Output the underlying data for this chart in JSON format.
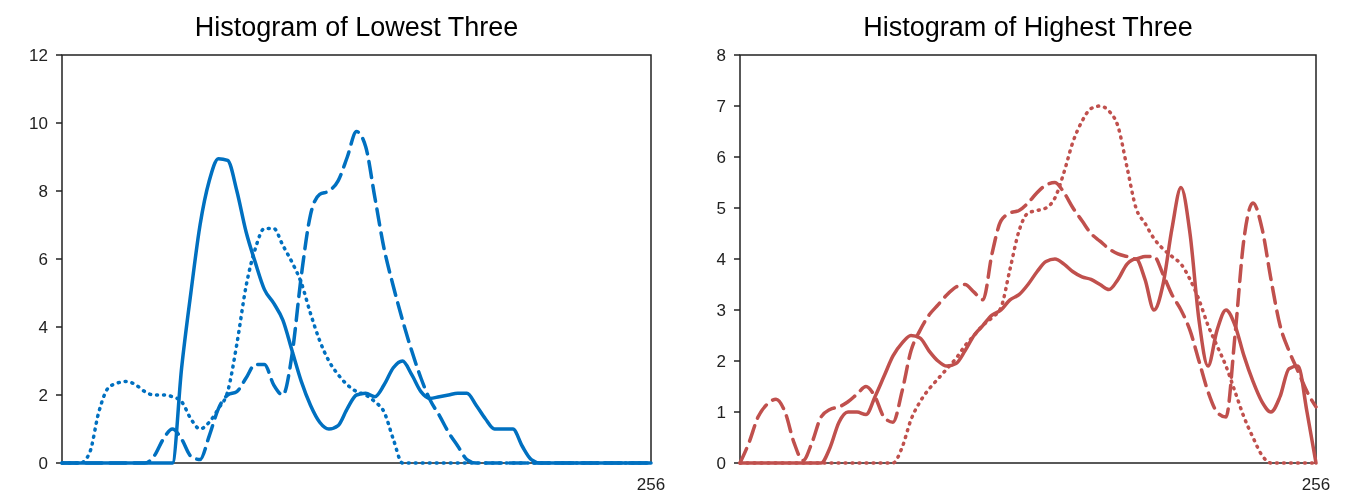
{
  "chart_data": [
    {
      "type": "line",
      "title": "Histogram of Lowest Three",
      "categories": [
        null,
        null,
        null,
        null,
        null,
        null,
        null,
        null,
        null,
        null,
        null,
        null,
        null,
        null,
        null,
        null,
        null,
        null,
        null,
        null,
        null,
        null,
        null,
        null,
        null,
        null,
        null,
        null,
        null,
        null,
        null,
        null,
        null,
        null,
        null,
        null,
        null,
        null,
        null,
        null,
        null,
        null,
        null,
        null,
        null,
        null,
        null,
        null,
        null,
        null,
        null,
        null,
        null,
        null,
        null,
        null,
        null,
        null,
        null,
        null,
        null,
        null,
        null,
        null,
        "256"
      ],
      "ylim": [
        0,
        12
      ],
      "yticks": [
        0,
        2,
        4,
        6,
        8,
        10,
        12
      ],
      "marker": "none",
      "series": [
        {
          "color": "#0070c0",
          "line_style": "solid",
          "values": [
            0,
            0,
            0,
            0,
            0,
            0,
            0,
            0,
            0,
            0,
            0,
            0,
            0,
            2.8,
            5,
            7,
            8.3,
            8.95,
            8.9,
            8,
            6.8,
            5.9,
            5.1,
            4.7,
            4.2,
            3.3,
            2.4,
            1.7,
            1.2,
            1,
            1.1,
            1.6,
            2,
            2.05,
            1.95,
            2.3,
            2.8,
            3,
            2.6,
            2.1,
            1.9,
            1.95,
            2,
            2.05,
            2.05,
            1.7,
            1.3,
            1,
            1,
            1,
            0.5,
            0.1,
            0,
            0,
            0,
            0,
            0,
            0,
            0,
            0,
            0,
            0,
            0,
            0,
            0
          ]
        },
        {
          "color": "#0070c0",
          "line_style": "dashed",
          "values": [
            0,
            0,
            0,
            0,
            0,
            0,
            0,
            0,
            0,
            0,
            0.2,
            0.7,
            1,
            0.7,
            0.2,
            0.1,
            0.8,
            1.6,
            2,
            2.1,
            2.5,
            2.9,
            2.9,
            2.3,
            2,
            3.2,
            5.5,
            7.3,
            7.9,
            8,
            8.3,
            9,
            9.75,
            9.3,
            7.8,
            6.3,
            5.2,
            4.2,
            3.3,
            2.5,
            1.85,
            1.4,
            0.9,
            0.5,
            0.1,
            0,
            0,
            0,
            0,
            0,
            0,
            0,
            0,
            0,
            0,
            0,
            0,
            0,
            0,
            0,
            0,
            0,
            0,
            0,
            0
          ]
        },
        {
          "color": "#0070c0",
          "line_style": "dotted",
          "values": [
            0,
            0,
            0,
            0.3,
            1.5,
            2.2,
            2.35,
            2.4,
            2.3,
            2.1,
            2,
            2,
            1.95,
            1.8,
            1.3,
            1,
            1.2,
            1.6,
            2.1,
            3.5,
            5.2,
            6.3,
            6.9,
            6.9,
            6.4,
            5.9,
            5.3,
            4.4,
            3.6,
            3,
            2.6,
            2.3,
            2.1,
            2,
            1.8,
            1.5,
            0.7,
            0,
            0,
            0,
            0,
            0,
            0,
            0,
            0,
            0,
            0,
            0,
            0,
            0,
            0,
            0,
            0,
            0,
            0,
            0,
            0,
            0,
            0,
            0,
            0,
            0,
            0,
            0,
            0
          ]
        }
      ]
    },
    {
      "type": "line",
      "title": "Histogram of Highest Three",
      "categories": [
        null,
        null,
        null,
        null,
        null,
        null,
        null,
        null,
        null,
        null,
        null,
        null,
        null,
        null,
        null,
        null,
        null,
        null,
        null,
        null,
        null,
        null,
        null,
        null,
        null,
        null,
        null,
        null,
        null,
        null,
        null,
        null,
        null,
        null,
        null,
        null,
        null,
        null,
        null,
        null,
        null,
        null,
        null,
        null,
        null,
        null,
        null,
        null,
        null,
        null,
        null,
        null,
        null,
        null,
        null,
        null,
        null,
        null,
        null,
        null,
        null,
        null,
        null,
        null,
        "256"
      ],
      "ylim": [
        0,
        8
      ],
      "yticks": [
        0,
        1,
        2,
        3,
        4,
        5,
        6,
        7,
        8
      ],
      "marker": "none",
      "series": [
        {
          "color": "#c0504d",
          "line_style": "solid",
          "values": [
            0,
            0,
            0,
            0,
            0,
            0,
            0,
            0,
            0,
            0,
            0.3,
            0.8,
            1,
            1,
            0.95,
            1.3,
            1.7,
            2.1,
            2.35,
            2.5,
            2.45,
            2.2,
            2,
            1.9,
            1.95,
            2.2,
            2.5,
            2.7,
            2.9,
            3,
            3.2,
            3.3,
            3.5,
            3.75,
            3.95,
            4,
            3.9,
            3.75,
            3.65,
            3.6,
            3.5,
            3.4,
            3.6,
            3.9,
            4,
            3.6,
            3,
            3.5,
            4.6,
            5.4,
            4.5,
            2.8,
            1.9,
            2.6,
            3,
            2.7,
            2.1,
            1.6,
            1.2,
            1,
            1.3,
            1.85,
            1.9,
            1,
            0
          ]
        },
        {
          "color": "#c0504d",
          "line_style": "dashed",
          "values": [
            0,
            0.4,
            0.9,
            1.15,
            1.25,
            1,
            0.4,
            0.05,
            0.4,
            0.9,
            1.05,
            1.1,
            1.2,
            1.35,
            1.5,
            1.3,
            0.9,
            0.8,
            1.4,
            2.2,
            2.6,
            2.9,
            3.1,
            3.3,
            3.45,
            3.5,
            3.35,
            3.2,
            4.1,
            4.75,
            4.9,
            4.95,
            5.1,
            5.3,
            5.45,
            5.5,
            5.3,
            5,
            4.75,
            4.5,
            4.35,
            4.2,
            4.1,
            4.05,
            4,
            4.05,
            4.05,
            3.7,
            3.3,
            3,
            2.6,
            2,
            1.4,
            1,
            0.9,
            2.5,
            4.4,
            5.1,
            4.6,
            3.6,
            2.7,
            2.2,
            1.8,
            1.4,
            1.1
          ]
        },
        {
          "color": "#c0504d",
          "line_style": "dotted",
          "values": [
            0,
            0,
            0,
            0,
            0,
            0,
            0,
            0,
            0,
            0,
            0,
            0,
            0,
            0,
            0,
            0,
            0,
            0,
            0.3,
            0.85,
            1.2,
            1.45,
            1.65,
            1.85,
            2.05,
            2.3,
            2.5,
            2.7,
            2.85,
            3.05,
            3.8,
            4.55,
            4.9,
            4.95,
            5,
            5.2,
            5.7,
            6.3,
            6.7,
            6.95,
            7,
            6.9,
            6.6,
            5.8,
            5,
            4.7,
            4.4,
            4.2,
            4.05,
            3.9,
            3.6,
            3.2,
            2.7,
            2.3,
            1.9,
            1.4,
            0.9,
            0.5,
            0.15,
            0,
            0,
            0,
            0,
            0,
            0
          ]
        }
      ]
    }
  ]
}
